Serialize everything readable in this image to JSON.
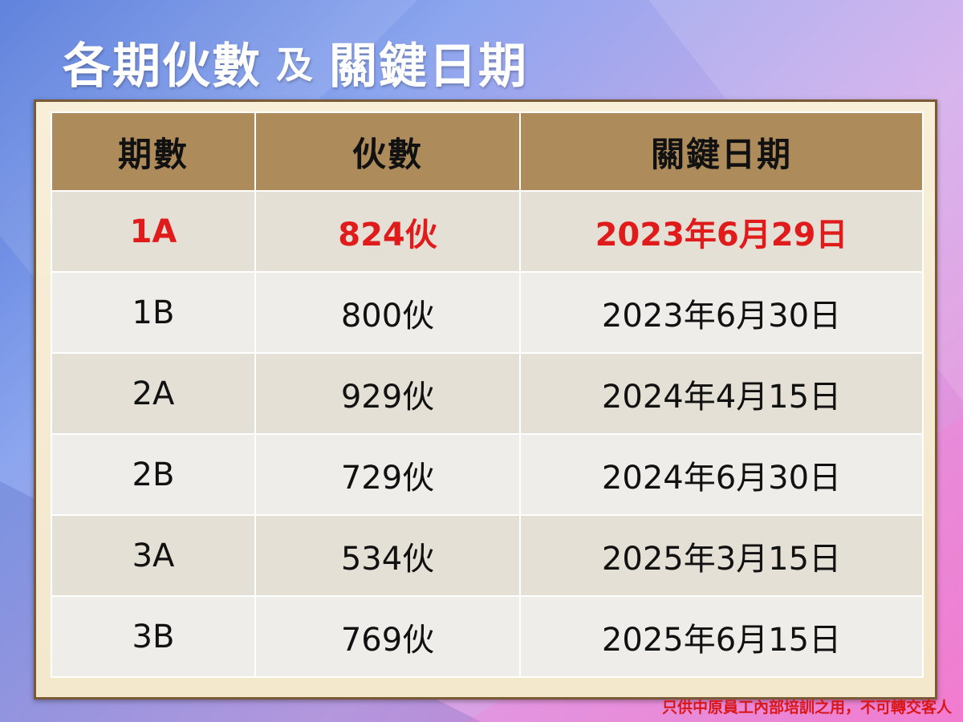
{
  "title": {
    "main": "各期伙數",
    "connector": "及",
    "tail": "關鍵日期"
  },
  "table": {
    "headers": [
      "期數",
      "伙數",
      "關鍵日期"
    ],
    "rows": [
      {
        "phase": "1A",
        "units": "824伙",
        "date": "2023年6月29日"
      },
      {
        "phase": "1B",
        "units": "800伙",
        "date": "2023年6月30日"
      },
      {
        "phase": "2A",
        "units": "929伙",
        "date": "2024年4月15日"
      },
      {
        "phase": "2B",
        "units": "729伙",
        "date": "2024年6月30日"
      },
      {
        "phase": "3A",
        "units": "534伙",
        "date": "2025年3月15日"
      },
      {
        "phase": "3B",
        "units": "769伙",
        "date": "2025年6月15日"
      }
    ],
    "highlighted_phase": "1A"
  },
  "footer_notice": "只供中原員工內部培訓之用，不可轉交客人",
  "colors": {
    "header_bg": "#ad8b5b",
    "highlight_text": "#e01b1b",
    "card_border": "#7a5a36",
    "notice_text": "#d81818"
  }
}
